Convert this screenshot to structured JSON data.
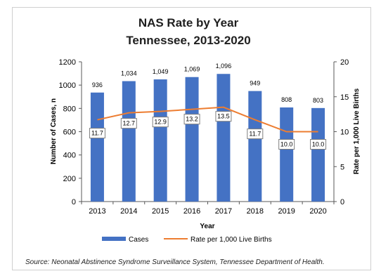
{
  "chart_data": {
    "type": "bar",
    "title": "NAS Rate by Year",
    "subtitle": "Tennessee, 2013-2020",
    "categories": [
      "2013",
      "2014",
      "2015",
      "2016",
      "2017",
      "2018",
      "2019",
      "2020"
    ],
    "xlabel": "Year",
    "ylabel": "Number of Cases, n",
    "y2label": "Rate per 1,000 Live Births",
    "ylim": [
      0,
      1200
    ],
    "yticks": [
      0,
      200,
      400,
      600,
      800,
      1000,
      1200
    ],
    "y2lim": [
      0,
      20
    ],
    "y2ticks": [
      0,
      5,
      10,
      15,
      20
    ],
    "series": [
      {
        "name": "Cases",
        "type": "bar",
        "axis": "left",
        "color": "#4472C4",
        "values": [
          936,
          1034,
          1049,
          1069,
          1096,
          949,
          808,
          803
        ],
        "labels": [
          "936",
          "1,034",
          "1,049",
          "1,069",
          "1,096",
          "949",
          "808",
          "803"
        ]
      },
      {
        "name": "Rate per 1,000 Live Births",
        "type": "line",
        "axis": "right",
        "color": "#ED7D31",
        "values": [
          11.7,
          12.7,
          12.9,
          13.2,
          13.5,
          11.7,
          10.0,
          10.0
        ],
        "labels": [
          "11.7",
          "12.7",
          "12.9",
          "13.2",
          "13.5",
          "11.7",
          "10.0",
          "10.0"
        ]
      }
    ],
    "grid": false,
    "legend": "bottom"
  },
  "source_note": "Source: Neonatal Abstinence Syndrome Surveillance System, Tennessee Department of Health."
}
